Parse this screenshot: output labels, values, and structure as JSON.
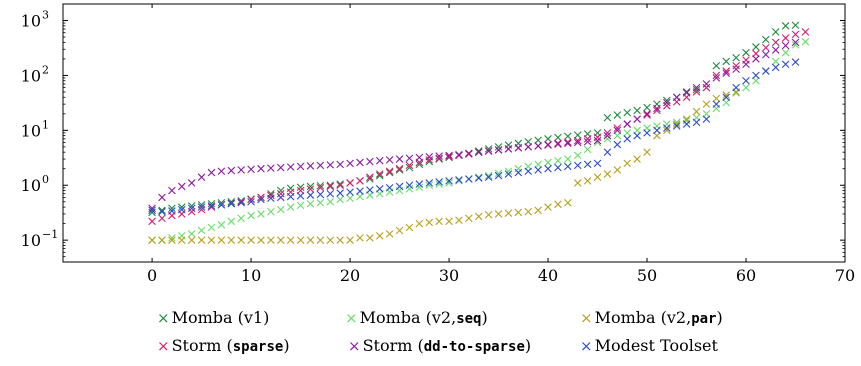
{
  "chart_data": {
    "type": "scatter",
    "title": "",
    "xlabel": "",
    "ylabel": "",
    "xlim": [
      -9,
      70
    ],
    "ylim": [
      0.04,
      2000
    ],
    "yscale": "log",
    "grid": false,
    "legend_placement": "bottom",
    "x_ticks": [
      0,
      10,
      20,
      30,
      40,
      50,
      60,
      70
    ],
    "x_tick_labels": [
      "0",
      "10",
      "20",
      "30",
      "40",
      "50",
      "60",
      "70"
    ],
    "y_ticks": [
      0.1,
      1,
      10,
      100,
      1000
    ],
    "y_tick_labels": [
      "10",
      "10",
      "10",
      "10",
      "10"
    ],
    "y_tick_exponents": [
      "−1",
      "0",
      "1",
      "2",
      "3"
    ],
    "series": [
      {
        "name": "Momba (v1)",
        "legend_prefix": "Momba (v1)",
        "legend_code": "",
        "legend_suffix": "",
        "color": "#1e8a3c",
        "marker": "×",
        "values": [
          0.32,
          0.35,
          0.38,
          0.4,
          0.42,
          0.44,
          0.46,
          0.48,
          0.5,
          0.52,
          0.56,
          0.6,
          0.7,
          0.8,
          0.88,
          0.92,
          0.95,
          0.98,
          1.0,
          1.05,
          1.1,
          1.2,
          1.3,
          1.5,
          1.7,
          1.9,
          2.1,
          2.4,
          2.7,
          3.0,
          3.2,
          3.5,
          3.8,
          4.2,
          4.6,
          5.0,
          5.4,
          5.8,
          6.2,
          6.6,
          7.0,
          7.4,
          7.8,
          8.2,
          8.6,
          9.0,
          17,
          19,
          21,
          23,
          26,
          30,
          35,
          40,
          48,
          55,
          60,
          150,
          180,
          210,
          260,
          330,
          450,
          620,
          800,
          820
        ]
      },
      {
        "name": "Momba (v2,seq)",
        "legend_prefix": "Momba (v2,",
        "legend_code": "seq",
        "legend_suffix": ")",
        "color": "#66dd66",
        "marker": "×",
        "values": [
          0.1,
          0.1,
          0.11,
          0.12,
          0.13,
          0.15,
          0.17,
          0.19,
          0.22,
          0.25,
          0.28,
          0.3,
          0.33,
          0.36,
          0.4,
          0.43,
          0.46,
          0.48,
          0.5,
          0.55,
          0.58,
          0.62,
          0.66,
          0.7,
          0.75,
          0.8,
          0.86,
          0.92,
          1.0,
          1.05,
          1.1,
          1.2,
          1.3,
          1.4,
          1.5,
          1.65,
          1.8,
          2.0,
          2.2,
          2.4,
          2.6,
          2.8,
          3.0,
          3.5,
          4.5,
          6.0,
          7.0,
          8.0,
          9.0,
          10.0,
          11.0,
          12.0,
          13.0,
          14.0,
          15.0,
          17.0,
          20.0,
          25.0,
          32.0,
          48.0,
          60.0,
          80.0,
          120.0,
          180.0,
          260.0,
          360.0,
          410.0
        ]
      },
      {
        "name": "Momba (v2,par)",
        "legend_prefix": "Momba (v2,",
        "legend_code": "par",
        "legend_suffix": ")",
        "color": "#b8a01c",
        "marker": "×",
        "values": [
          0.1,
          0.1,
          0.1,
          0.1,
          0.1,
          0.1,
          0.1,
          0.1,
          0.1,
          0.1,
          0.1,
          0.1,
          0.1,
          0.1,
          0.1,
          0.1,
          0.1,
          0.1,
          0.1,
          0.1,
          0.1,
          0.11,
          0.11,
          0.12,
          0.13,
          0.15,
          0.17,
          0.2,
          0.21,
          0.22,
          0.22,
          0.23,
          0.25,
          0.27,
          0.29,
          0.3,
          0.31,
          0.32,
          0.33,
          0.35,
          0.4,
          0.45,
          0.48,
          1.1,
          1.2,
          1.4,
          1.6,
          1.9,
          2.5,
          3.0,
          4.0,
          8.0,
          10.0,
          13.0,
          16.0,
          22.0,
          30.0,
          38.0,
          44.0,
          50.0
        ]
      },
      {
        "name": "Storm (sparse)",
        "legend_prefix": "Storm (",
        "legend_code": "sparse",
        "legend_suffix": ")",
        "color": "#dd1a6e",
        "marker": "×",
        "values": [
          0.22,
          0.25,
          0.28,
          0.3,
          0.33,
          0.36,
          0.4,
          0.44,
          0.47,
          0.5,
          0.55,
          0.6,
          0.65,
          0.7,
          0.75,
          0.8,
          0.85,
          0.9,
          0.95,
          1.0,
          1.1,
          1.2,
          1.4,
          1.6,
          1.8,
          2.0,
          2.3,
          2.6,
          2.9,
          3.1,
          3.3,
          3.5,
          3.7,
          4.0,
          4.2,
          4.4,
          4.6,
          4.8,
          5.0,
          5.2,
          5.5,
          5.8,
          6.1,
          6.5,
          7.0,
          7.5,
          9.0,
          11.0,
          13.0,
          16.0,
          19.0,
          23.0,
          28.0,
          33.0,
          40.0,
          50.0,
          60.0,
          100.0,
          120.0,
          150.0,
          190.0,
          250.0,
          320.0,
          400.0,
          480.0,
          560.0,
          620.0
        ]
      },
      {
        "name": "Storm (dd-to-sparse)",
        "legend_prefix": "Storm (",
        "legend_code": "dd-to-sparse",
        "legend_suffix": ")",
        "color": "#8a1aa0",
        "marker": "×",
        "values": [
          0.38,
          0.6,
          0.8,
          0.95,
          1.1,
          1.4,
          1.7,
          1.8,
          1.85,
          1.9,
          1.95,
          2.0,
          2.05,
          2.1,
          2.15,
          2.2,
          2.25,
          2.3,
          2.35,
          2.4,
          2.5,
          2.6,
          2.7,
          2.8,
          2.9,
          3.0,
          3.1,
          3.2,
          3.3,
          3.4,
          3.5,
          3.6,
          3.8,
          4.0,
          4.2,
          4.4,
          4.6,
          4.8,
          5.0,
          5.2,
          5.4,
          5.6,
          5.8,
          6.0,
          6.2,
          6.5,
          8.0,
          10.0,
          13.0,
          16.0,
          20.0,
          25.0,
          32.0,
          40.0,
          50.0,
          60.0,
          70.0,
          90.0,
          110.0,
          130.0,
          160.0,
          200.0,
          240.0,
          290.0,
          350.0,
          400.0
        ]
      },
      {
        "name": "Modest Toolset",
        "legend_prefix": "Modest Toolset",
        "legend_code": "",
        "legend_suffix": "",
        "color": "#2a4bd0",
        "marker": "×",
        "values": [
          0.35,
          0.33,
          0.34,
          0.36,
          0.38,
          0.4,
          0.42,
          0.44,
          0.46,
          0.48,
          0.5,
          0.55,
          0.58,
          0.6,
          0.62,
          0.64,
          0.66,
          0.68,
          0.7,
          0.72,
          0.75,
          0.78,
          0.82,
          0.86,
          0.9,
          0.95,
          1.0,
          1.05,
          1.1,
          1.15,
          1.2,
          1.25,
          1.3,
          1.35,
          1.4,
          1.5,
          1.6,
          1.7,
          1.8,
          1.9,
          2.0,
          2.1,
          2.2,
          2.3,
          2.4,
          2.5,
          4.0,
          5.5,
          7.0,
          8.0,
          9.0,
          10.0,
          11.0,
          12.0,
          13.0,
          14.0,
          16.0,
          30.0,
          40.0,
          60.0,
          80.0,
          100.0,
          120.0,
          140.0,
          160.0,
          175.0
        ]
      }
    ]
  }
}
